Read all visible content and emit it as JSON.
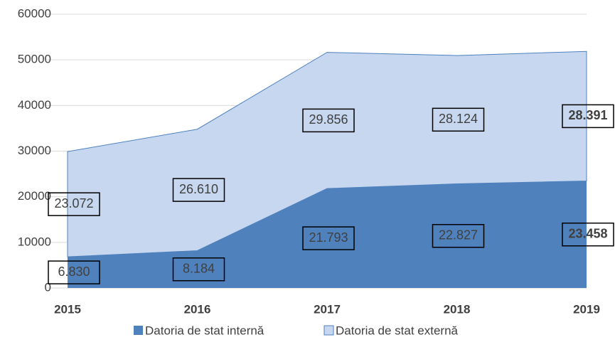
{
  "chart_data": {
    "type": "area",
    "stacked": true,
    "categories": [
      "2015",
      "2016",
      "2017",
      "2018",
      "2019"
    ],
    "series": [
      {
        "name": "Datoria de stat internă",
        "color": "#4f81bd",
        "values": [
          6830,
          8184,
          21793,
          22827,
          23458
        ],
        "value_labels": [
          "6.830",
          "8.184",
          "21.793",
          "22.827",
          "23.458"
        ]
      },
      {
        "name": "Datoria de stat externă",
        "color": "#c6d7ef",
        "values": [
          23072,
          26610,
          29856,
          28124,
          28391
        ],
        "value_labels": [
          "23.072",
          "26.610",
          "29.856",
          "28.124",
          "28.391"
        ]
      }
    ],
    "ylim": [
      0,
      60000
    ],
    "yticks": [
      0,
      10000,
      20000,
      30000,
      40000,
      50000,
      60000
    ],
    "grid": true,
    "legend": "bottom"
  }
}
